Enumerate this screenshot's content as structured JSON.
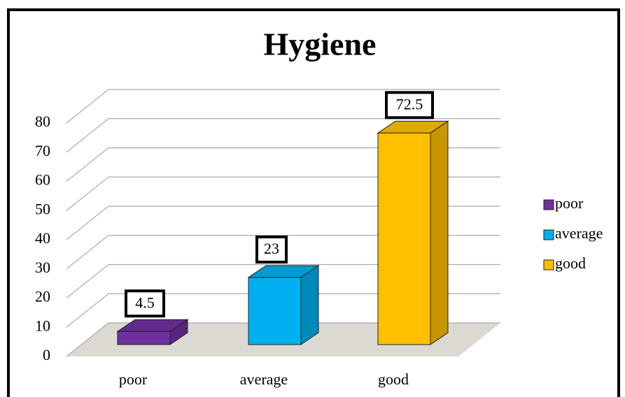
{
  "chart_data": {
    "type": "bar3d",
    "title": "Hygiene",
    "categories": [
      "poor",
      "average",
      "good"
    ],
    "values": [
      4.5,
      23,
      72.5
    ],
    "colors": [
      "#7030a0",
      "#00b0f0",
      "#ffc000"
    ],
    "ylim": [
      0,
      80
    ],
    "yticks": [
      0,
      10,
      20,
      30,
      40,
      50,
      60,
      70,
      80
    ],
    "grid": true,
    "legend": "right"
  }
}
